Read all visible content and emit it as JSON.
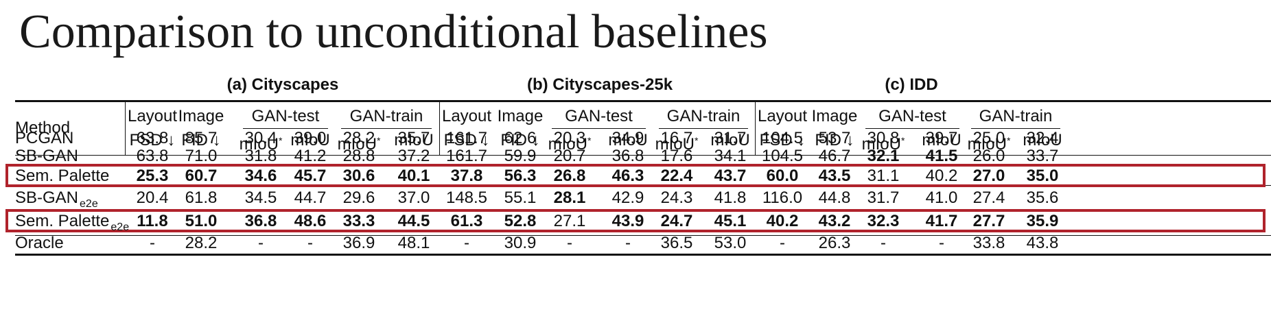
{
  "title": "Comparison to unconditional baselines",
  "groups": [
    "(a) Cityscapes",
    "(b) Cityscapes-25k",
    "(c) IDD"
  ],
  "header": {
    "method": "Method",
    "top": [
      "Layout",
      "Image",
      "GAN-test",
      "GAN-train"
    ],
    "sub": [
      "FSD ↓",
      "FID ↓",
      "mIoU",
      "mIoU",
      "mIoU",
      "mIoU"
    ],
    "star": "*"
  },
  "rows": [
    {
      "method": "PCGAN",
      "method_sub": "",
      "highlight": false,
      "values": [
        "63.8",
        "85.7",
        "30.4",
        "39.0",
        "28.2",
        "35.7",
        "161.7",
        "62.6",
        "20.3",
        "34.9",
        "16.7",
        "31.7",
        "104.5",
        "53.7",
        "30.8",
        "39.7",
        "25.0",
        "32.4"
      ],
      "bold": []
    },
    {
      "method": "SB-GAN",
      "method_sub": "",
      "highlight": false,
      "values": [
        "63.8",
        "71.0",
        "31.8",
        "41.2",
        "28.8",
        "37.2",
        "161.7",
        "59.9",
        "20.7",
        "36.8",
        "17.6",
        "34.1",
        "104.5",
        "46.7",
        "32.1",
        "41.5",
        "26.0",
        "33.7"
      ],
      "bold": [
        14,
        15
      ]
    },
    {
      "method": "Sem. Palette",
      "method_sub": "",
      "highlight": true,
      "values": [
        "25.3",
        "60.7",
        "34.6",
        "45.7",
        "30.6",
        "40.1",
        "37.8",
        "56.3",
        "26.8",
        "46.3",
        "22.4",
        "43.7",
        "60.0",
        "43.5",
        "31.1",
        "40.2",
        "27.0",
        "35.0"
      ],
      "bold": [
        0,
        1,
        2,
        3,
        4,
        5,
        6,
        7,
        8,
        9,
        10,
        11,
        12,
        13,
        16,
        17
      ]
    },
    {
      "method": "SB-GAN",
      "method_sub": "e2e",
      "highlight": false,
      "values": [
        "20.4",
        "61.8",
        "34.5",
        "44.7",
        "29.6",
        "37.0",
        "148.5",
        "55.1",
        "28.1",
        "42.9",
        "24.3",
        "41.8",
        "116.0",
        "44.8",
        "31.7",
        "41.0",
        "27.4",
        "35.6"
      ],
      "bold": [
        8
      ]
    },
    {
      "method": "Sem. Palette",
      "method_sub": "e2e",
      "highlight": true,
      "values": [
        "11.8",
        "51.0",
        "36.8",
        "48.6",
        "33.3",
        "44.5",
        "61.3",
        "52.8",
        "27.1",
        "43.9",
        "24.7",
        "45.1",
        "40.2",
        "43.2",
        "32.3",
        "41.7",
        "27.7",
        "35.9"
      ],
      "bold": [
        0,
        1,
        2,
        3,
        4,
        5,
        6,
        7,
        9,
        10,
        11,
        12,
        13,
        14,
        15,
        16,
        17
      ]
    },
    {
      "method": "Oracle",
      "method_sub": "",
      "highlight": false,
      "values": [
        "-",
        "28.2",
        "-",
        "-",
        "36.9",
        "48.1",
        "-",
        "30.9",
        "-",
        "-",
        "36.5",
        "53.0",
        "-",
        "26.3",
        "-",
        "-",
        "33.8",
        "43.8"
      ],
      "bold": []
    }
  ],
  "colors": {
    "highlight_border": "#b0232c",
    "rule": "#111111"
  }
}
